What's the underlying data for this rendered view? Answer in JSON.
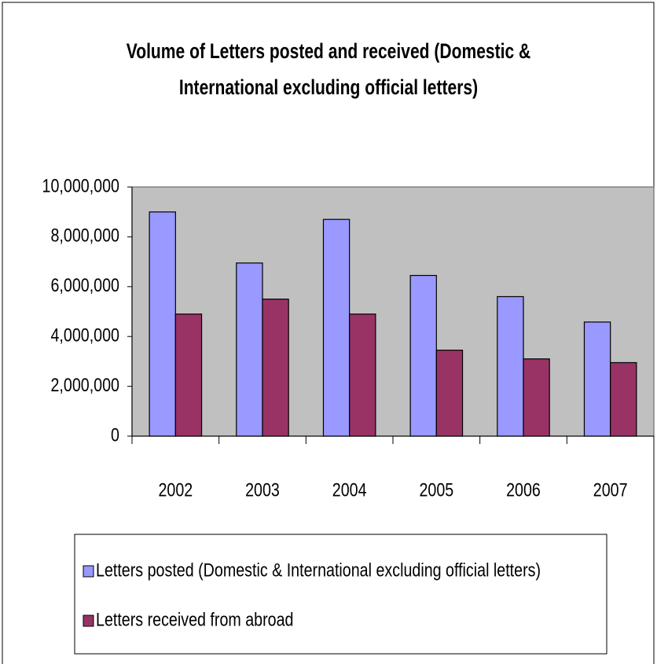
{
  "chart_data": {
    "type": "bar",
    "title": "Volume of Letters posted and received (Domestic & International excluding official letters)",
    "categories": [
      "2002",
      "2003",
      "2004",
      "2005",
      "2006",
      "2007"
    ],
    "series": [
      {
        "name": "Letters posted (Domestic & International excluding official letters)",
        "color": "#9999ff",
        "values": [
          9000000,
          6950000,
          8700000,
          6450000,
          5600000,
          4580000
        ]
      },
      {
        "name": "Letters received from abroad",
        "color": "#993366",
        "values": [
          4900000,
          5500000,
          4900000,
          3450000,
          3100000,
          2950000
        ]
      }
    ],
    "ylim": [
      0,
      10000000
    ],
    "yticks": [
      0,
      {
        "value": 2000000,
        "label": "2,000,000"
      },
      {
        "value": 4000000,
        "label": "4,000,000"
      },
      {
        "value": 6000000,
        "label": "6,000,000"
      },
      {
        "value": 8000000,
        "label": "8,000,000"
      },
      {
        "value": 10000000,
        "label": "10,000,000"
      }
    ],
    "legend": "bottom"
  }
}
